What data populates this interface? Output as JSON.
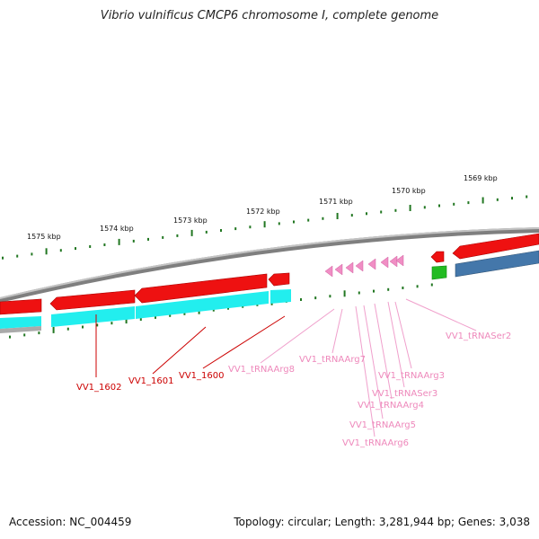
{
  "title": "Vibrio vulnificus CMCP6 chromosome I, complete genome",
  "footer": {
    "accession": "Accession: NC_004459",
    "summary": "Topology: circular; Length: 3,281,944 bp; Genes: 3,038"
  },
  "ticks": [
    {
      "label": "1575 kbp"
    },
    {
      "label": "1574 kbp"
    },
    {
      "label": "1573 kbp"
    },
    {
      "label": "1572 kbp"
    },
    {
      "label": "1571 kbp"
    },
    {
      "label": "1570 kbp"
    },
    {
      "label": "1569 kbp"
    }
  ],
  "genes": [
    {
      "label": "VV1_1602",
      "type": "CDS"
    },
    {
      "label": "VV1_1601",
      "type": "CDS"
    },
    {
      "label": "VV1_1600",
      "type": "CDS"
    },
    {
      "label": "VV1_tRNAArg8",
      "type": "tRNA"
    },
    {
      "label": "VV1_tRNAArg7",
      "type": "tRNA"
    },
    {
      "label": "VV1_tRNAArg3",
      "type": "tRNA"
    },
    {
      "label": "VV1_tRNASer3",
      "type": "tRNA"
    },
    {
      "label": "VV1_tRNAArg4",
      "type": "tRNA"
    },
    {
      "label": "VV1_tRNAArg5",
      "type": "tRNA"
    },
    {
      "label": "VV1_tRNAArg6",
      "type": "tRNA"
    },
    {
      "label": "VV1_tRNASer2",
      "type": "tRNA"
    }
  ],
  "colors": {
    "cds": "#ee1111",
    "cds_dark": "#aa0000",
    "cyan": "#22eeee",
    "trna": "#f08ec4",
    "green": "#22aa22",
    "blue": "#4477aa",
    "backbone": "#888888",
    "label_cds": "#cc0000",
    "label_trna": "#ee88bb"
  }
}
